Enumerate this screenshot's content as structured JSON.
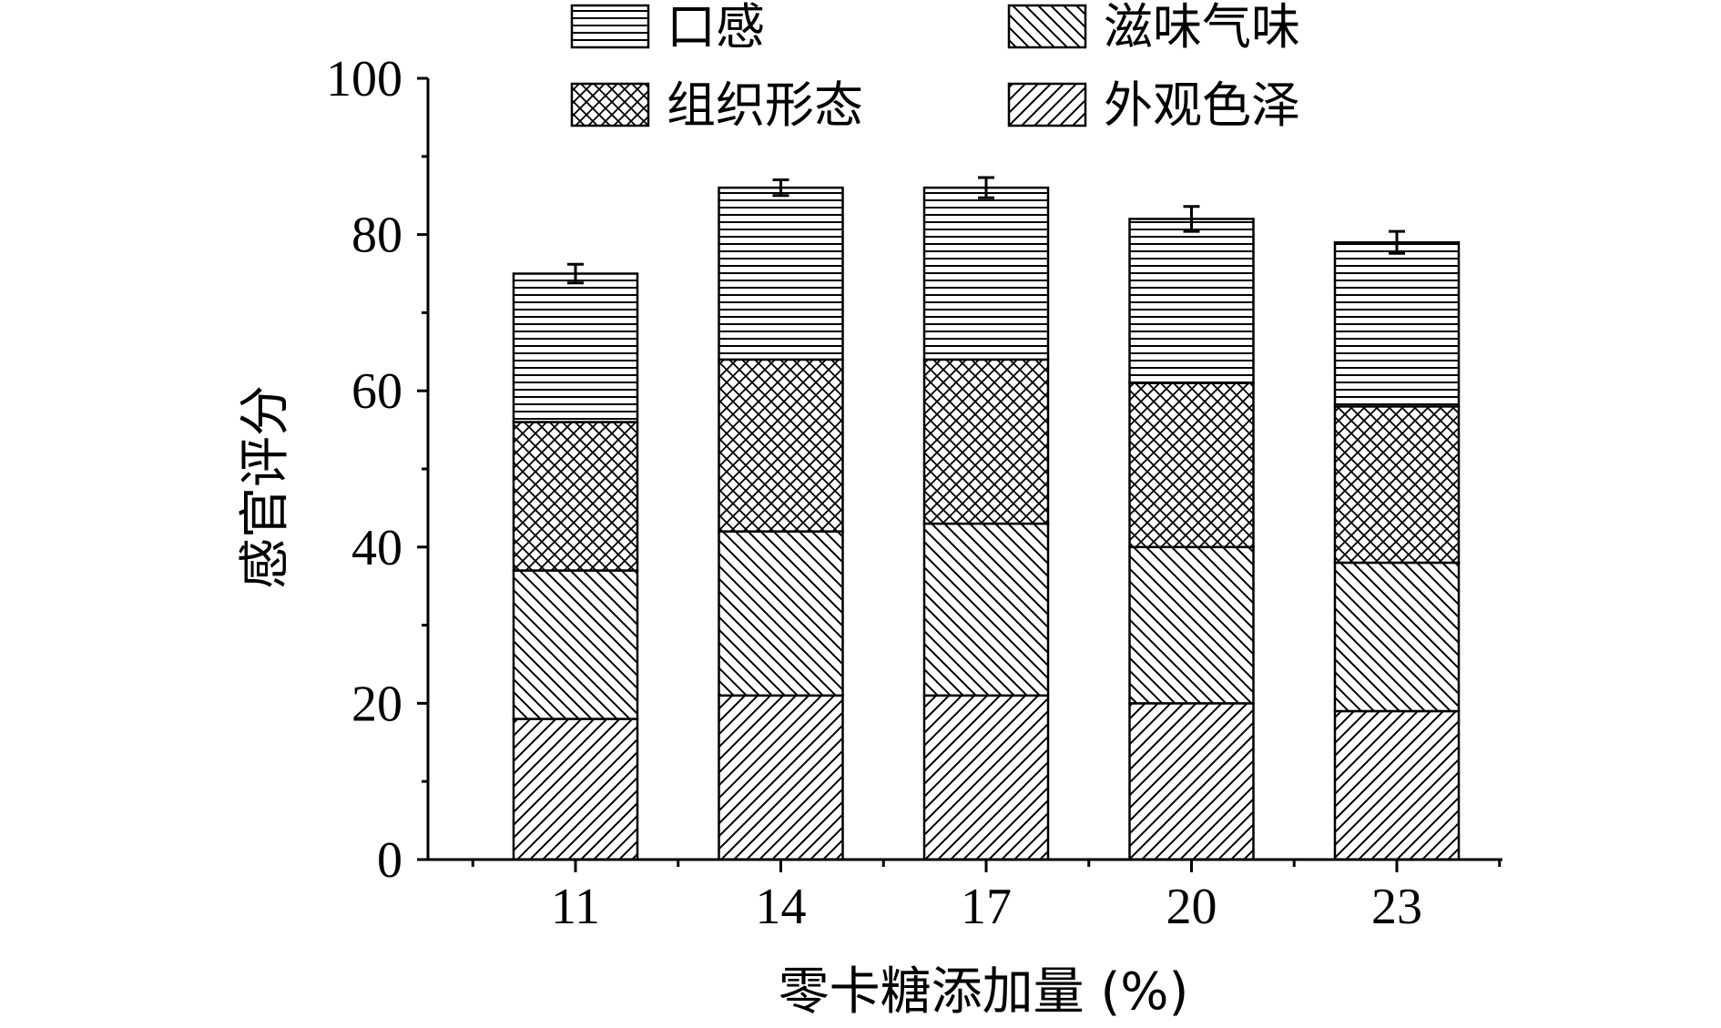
{
  "chart_data": {
    "type": "bar",
    "stacked": true,
    "categories": [
      "11",
      "14",
      "17",
      "20",
      "23"
    ],
    "series": [
      {
        "name": "外观色泽",
        "values": [
          18,
          21,
          21,
          20,
          19
        ],
        "pattern": "diagonal-forward"
      },
      {
        "name": "滋味气味",
        "values": [
          19,
          21,
          22,
          20,
          19
        ],
        "pattern": "diagonal-backward"
      },
      {
        "name": "组织形态",
        "values": [
          19,
          22,
          21,
          21,
          20
        ],
        "pattern": "crosshatch"
      },
      {
        "name": "口感",
        "values": [
          19,
          22,
          22,
          21,
          21
        ],
        "pattern": "horizontal"
      }
    ],
    "totals": [
      75,
      86,
      86,
      82,
      79
    ],
    "errors": [
      1.2,
      1.0,
      1.3,
      1.6,
      1.4
    ],
    "xlabel": "零卡糖添加量 (%)",
    "ylabel": "感官评分",
    "ylim": [
      0,
      100
    ],
    "yticks": [
      "0",
      "20",
      "40",
      "60",
      "80",
      "100"
    ],
    "legend": {
      "placement": "top",
      "entries": [
        {
          "name": "口感",
          "pattern": "horizontal"
        },
        {
          "name": "滋味气味",
          "pattern": "diagonal-backward"
        },
        {
          "name": "组织形态",
          "pattern": "crosshatch"
        },
        {
          "name": "外观色泽",
          "pattern": "diagonal-forward"
        }
      ]
    },
    "grid": false,
    "colors": {
      "ink": "#000000",
      "fill": "#ffffff"
    }
  }
}
